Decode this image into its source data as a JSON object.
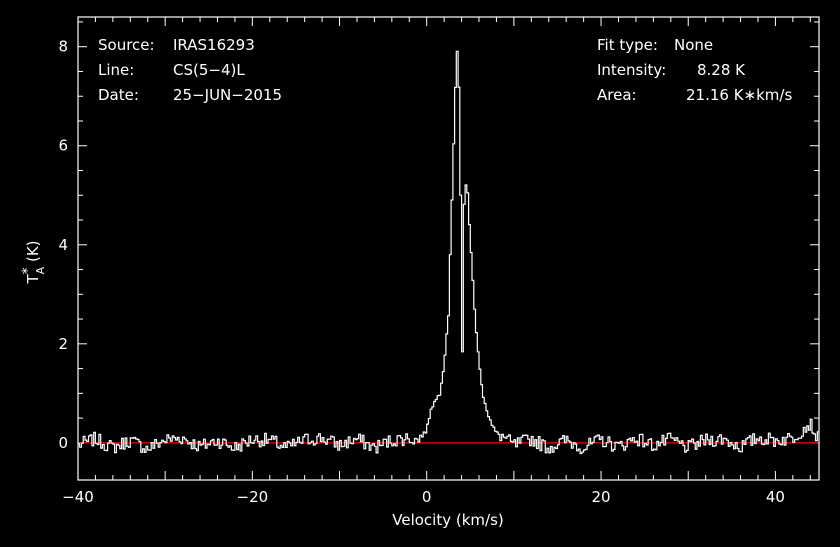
{
  "header_left": [
    {
      "key": "Source:",
      "value": "IRAS16293"
    },
    {
      "key": "Line:",
      "value": "CS(5−4)L"
    },
    {
      "key": "Date:",
      "value": "25−JUN−2015"
    }
  ],
  "header_right": [
    {
      "key": "Fit type:",
      "value": "None"
    },
    {
      "key": "Intensity:",
      "value": "8.28 K"
    },
    {
      "key": "Area:",
      "value": "21.16 K∗km/s"
    }
  ],
  "colors": {
    "background": "#000000",
    "frame": "#ffffff",
    "spectrum": "#ffffff",
    "baseline": "#ff0000"
  },
  "chart_data": {
    "type": "line",
    "style": "histogram-step",
    "xlabel": "Velocity (km/s)",
    "ylabel_base": "T",
    "ylabel_sub": "A",
    "ylabel_sup": "*",
    "ylabel_unit": " (K)",
    "xlim": [
      -40,
      45
    ],
    "ylim": [
      -0.75,
      8.6
    ],
    "x_ticks": [
      -40,
      -20,
      0,
      20,
      40
    ],
    "x_tick_labels": [
      "−40",
      "−20",
      "0",
      "20",
      "40"
    ],
    "y_ticks": [
      0,
      2,
      4,
      6,
      8
    ],
    "y_tick_labels": [
      "0",
      "2",
      "4",
      "6",
      "8"
    ],
    "baseline_y": 0,
    "grid": false,
    "channel_width": 0.2,
    "series": [
      {
        "points": [
          [
            -40,
            -0.05
          ],
          [
            -38,
            0.08
          ],
          [
            -36,
            -0.1
          ],
          [
            -34,
            0.05
          ],
          [
            -32,
            -0.12
          ],
          [
            -30,
            0.06
          ],
          [
            -28,
            0.1
          ],
          [
            -26,
            -0.08
          ],
          [
            -24,
            0.05
          ],
          [
            -22,
            -0.1
          ],
          [
            -20,
            0.07
          ],
          [
            -18,
            0.05
          ],
          [
            -16,
            -0.1
          ],
          [
            -14,
            0.06
          ],
          [
            -12,
            0.1
          ],
          [
            -10,
            -0.05
          ],
          [
            -8,
            0.08
          ],
          [
            -6,
            -0.1
          ],
          [
            -4,
            0.05
          ],
          [
            -2,
            0.1
          ],
          [
            -1,
            0.05
          ],
          [
            0,
            0.25
          ],
          [
            0.5,
            0.7
          ],
          [
            1,
            0.85
          ],
          [
            1.5,
            1.0
          ],
          [
            2,
            1.6
          ],
          [
            2.5,
            2.6
          ],
          [
            3,
            5.5
          ],
          [
            3.3,
            7.2
          ],
          [
            3.6,
            8.28
          ],
          [
            3.9,
            5.0
          ],
          [
            4.1,
            1.8
          ],
          [
            4.3,
            4.8
          ],
          [
            4.6,
            5.4
          ],
          [
            5,
            4.1
          ],
          [
            5.5,
            2.7
          ],
          [
            6,
            1.6
          ],
          [
            6.5,
            0.95
          ],
          [
            7,
            0.6
          ],
          [
            7.5,
            0.35
          ],
          [
            8,
            0.2
          ],
          [
            9,
            0.1
          ],
          [
            10,
            -0.05
          ],
          [
            12,
            0.08
          ],
          [
            14,
            -0.1
          ],
          [
            16,
            0.05
          ],
          [
            18,
            -0.1
          ],
          [
            20,
            0.06
          ],
          [
            22,
            -0.08
          ],
          [
            24,
            0.1
          ],
          [
            26,
            -0.05
          ],
          [
            28,
            0.07
          ],
          [
            30,
            -0.1
          ],
          [
            32,
            0.05
          ],
          [
            34,
            0.08
          ],
          [
            36,
            -0.08
          ],
          [
            38,
            0.1
          ],
          [
            40,
            0.05
          ],
          [
            42,
            0.1
          ],
          [
            44,
            0.4
          ],
          [
            45,
            0.05
          ]
        ]
      }
    ]
  }
}
